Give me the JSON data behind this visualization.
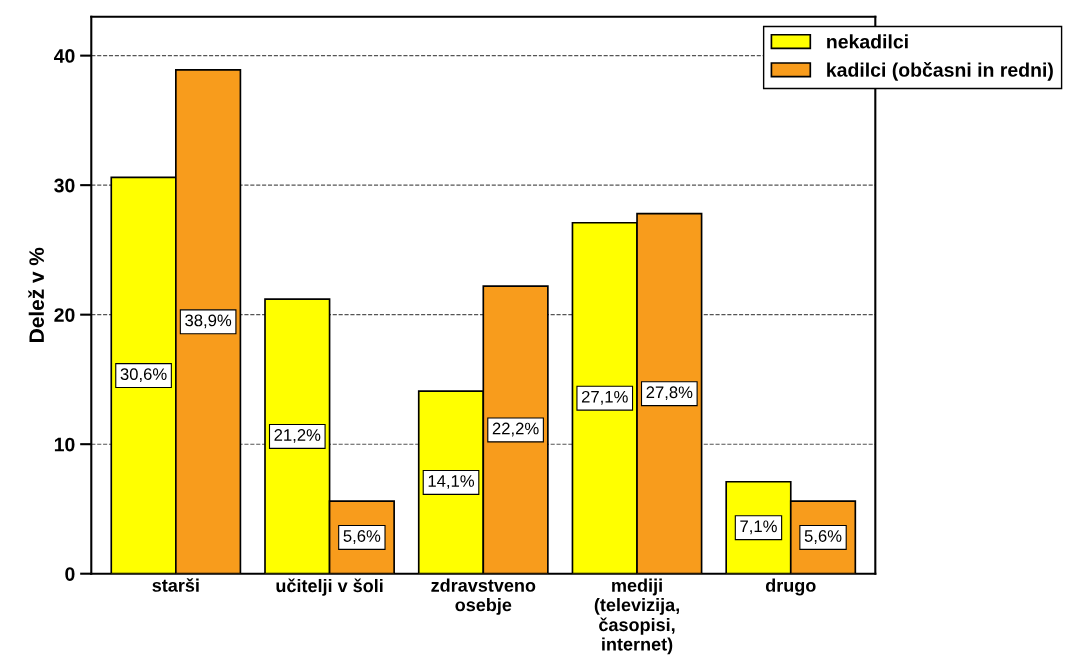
{
  "chart_data": {
    "type": "bar",
    "ylabel": "Delež v %",
    "categories": [
      "starši",
      "učitelji v šoli",
      "zdravstveno\nosebje",
      "mediji\n(televizija,\nčasopisi,\ninternet)",
      "drugo"
    ],
    "series": [
      {
        "name": "nekadilci",
        "color": "#ffff00",
        "values": [
          30.6,
          21.2,
          14.1,
          27.1,
          7.1
        ],
        "value_labels": [
          "30,6%",
          "21,2%",
          "14,1%",
          "27,1%",
          "7,1%"
        ]
      },
      {
        "name": "kadilci (občasni in redni)",
        "color": "#f89c1c",
        "values": [
          38.9,
          5.6,
          22.2,
          27.8,
          5.6
        ],
        "value_labels": [
          "38,9%",
          "5,6%",
          "22,2%",
          "27,8%",
          "5,6%"
        ]
      }
    ],
    "ylim": [
      0,
      43
    ],
    "yticks": [
      0,
      10,
      20,
      30,
      40
    ],
    "grid": "y",
    "legend": "top right"
  }
}
